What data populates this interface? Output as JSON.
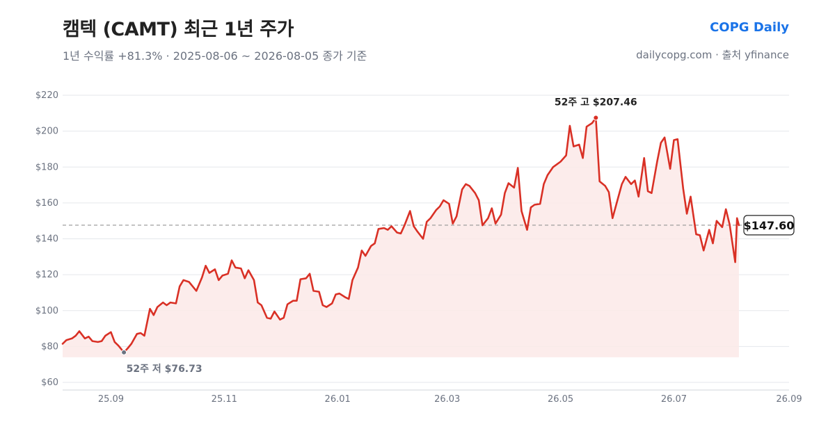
{
  "header": {
    "title": "캠텍 (CAMT) 최근 1년 주가",
    "subtitle": "1년 수익률 +81.3%  ·  2025-08-06 ~ 2026-08-05 종가 기준",
    "brand": "COPG Daily",
    "source": "dailycopg.com · 출처 yfinance"
  },
  "colors": {
    "line": "#d93025",
    "area": "#fbe9e7",
    "grid": "#e5e7eb",
    "reference": "#9e9e9e",
    "low_marker": "#6b7280",
    "brand": "#1a73e8"
  },
  "chart_data": {
    "type": "line",
    "title": "캠텍 (CAMT) 최근 1년 주가",
    "xlabel": "",
    "ylabel": "",
    "ylim": [
      60,
      220
    ],
    "y_ticks": [
      60,
      80,
      100,
      120,
      140,
      160,
      180,
      200,
      220
    ],
    "y_tick_labels": [
      "$60",
      "$80",
      "$100",
      "$120",
      "$140",
      "$160",
      "$180",
      "$200",
      "$220"
    ],
    "x_range": [
      "2025-08-06",
      "2026-09-01"
    ],
    "x_ticks": [
      {
        "date": "2025-09-01",
        "label": "25.09"
      },
      {
        "date": "2025-11-01",
        "label": "25.11"
      },
      {
        "date": "2026-01-01",
        "label": "26.01"
      },
      {
        "date": "2026-03-01",
        "label": "26.03"
      },
      {
        "date": "2026-05-01",
        "label": "26.05"
      },
      {
        "date": "2026-07-01",
        "label": "26.07"
      },
      {
        "date": "2026-09-01",
        "label": "26.09"
      }
    ],
    "grid": true,
    "series": [
      {
        "points": [
          [
            "2025-08-06",
            81.5
          ],
          [
            "2025-08-08",
            83.5
          ],
          [
            "2025-08-11",
            84.5
          ],
          [
            "2025-08-13",
            86
          ],
          [
            "2025-08-15",
            88.5
          ],
          [
            "2025-08-18",
            84.5
          ],
          [
            "2025-08-20",
            85.5
          ],
          [
            "2025-08-22",
            83
          ],
          [
            "2025-08-25",
            82.5
          ],
          [
            "2025-08-27",
            83
          ],
          [
            "2025-08-29",
            86
          ],
          [
            "2025-09-01",
            88
          ],
          [
            "2025-09-03",
            82.5
          ],
          [
            "2025-09-05",
            80.5
          ],
          [
            "2025-09-08",
            76.73
          ],
          [
            "2025-09-10",
            79
          ],
          [
            "2025-09-12",
            81.5
          ],
          [
            "2025-09-15",
            87
          ],
          [
            "2025-09-17",
            87.5
          ],
          [
            "2025-09-19",
            86
          ],
          [
            "2025-09-22",
            101
          ],
          [
            "2025-09-24",
            97.5
          ],
          [
            "2025-09-26",
            102
          ],
          [
            "2025-09-29",
            104.5
          ],
          [
            "2025-10-01",
            103
          ],
          [
            "2025-10-03",
            104.5
          ],
          [
            "2025-10-06",
            104
          ],
          [
            "2025-10-08",
            113.5
          ],
          [
            "2025-10-10",
            117
          ],
          [
            "2025-10-13",
            116
          ],
          [
            "2025-10-15",
            113.5
          ],
          [
            "2025-10-17",
            111
          ],
          [
            "2025-10-20",
            118.5
          ],
          [
            "2025-10-22",
            125
          ],
          [
            "2025-10-24",
            121
          ],
          [
            "2025-10-27",
            123
          ],
          [
            "2025-10-29",
            117
          ],
          [
            "2025-10-31",
            119.5
          ],
          [
            "2025-11-03",
            120.5
          ],
          [
            "2025-11-05",
            128
          ],
          [
            "2025-11-07",
            124
          ],
          [
            "2025-11-10",
            123.5
          ],
          [
            "2025-11-12",
            118
          ],
          [
            "2025-11-14",
            122.5
          ],
          [
            "2025-11-17",
            117
          ],
          [
            "2025-11-19",
            104.5
          ],
          [
            "2025-11-21",
            103
          ],
          [
            "2025-11-24",
            96
          ],
          [
            "2025-11-26",
            95.5
          ],
          [
            "2025-11-28",
            99.5
          ],
          [
            "2025-12-01",
            95
          ],
          [
            "2025-12-03",
            96
          ],
          [
            "2025-12-05",
            103.5
          ],
          [
            "2025-12-08",
            105.5
          ],
          [
            "2025-12-10",
            105.5
          ],
          [
            "2025-12-12",
            117.5
          ],
          [
            "2025-12-15",
            118
          ],
          [
            "2025-12-17",
            120.5
          ],
          [
            "2025-12-19",
            111
          ],
          [
            "2025-12-22",
            110.5
          ],
          [
            "2025-12-24",
            103
          ],
          [
            "2025-12-26",
            102
          ],
          [
            "2025-12-29",
            104
          ],
          [
            "2025-12-31",
            109
          ],
          [
            "2026-01-02",
            109.5
          ],
          [
            "2026-01-05",
            107.5
          ],
          [
            "2026-01-07",
            106.5
          ],
          [
            "2026-01-09",
            117
          ],
          [
            "2026-01-12",
            124
          ],
          [
            "2026-01-14",
            133.5
          ],
          [
            "2026-01-16",
            130.5
          ],
          [
            "2026-01-19",
            136
          ],
          [
            "2026-01-21",
            137.5
          ],
          [
            "2026-01-23",
            145.5
          ],
          [
            "2026-01-26",
            146
          ],
          [
            "2026-01-28",
            145
          ],
          [
            "2026-01-30",
            147
          ],
          [
            "2026-02-02",
            143.5
          ],
          [
            "2026-02-04",
            143
          ],
          [
            "2026-02-06",
            147.5
          ],
          [
            "2026-02-09",
            155.5
          ],
          [
            "2026-02-11",
            147
          ],
          [
            "2026-02-13",
            144
          ],
          [
            "2026-02-16",
            140
          ],
          [
            "2026-02-18",
            149.5
          ],
          [
            "2026-02-20",
            151.5
          ],
          [
            "2026-02-23",
            156
          ],
          [
            "2026-02-25",
            158
          ],
          [
            "2026-02-27",
            161.5
          ],
          [
            "2026-03-02",
            159.5
          ],
          [
            "2026-03-04",
            148.5
          ],
          [
            "2026-03-06",
            152.5
          ],
          [
            "2026-03-09",
            167.5
          ],
          [
            "2026-03-11",
            170.5
          ],
          [
            "2026-03-13",
            169.5
          ],
          [
            "2026-03-16",
            165.5
          ],
          [
            "2026-03-18",
            161.5
          ],
          [
            "2026-03-20",
            147.5
          ],
          [
            "2026-03-23",
            151.5
          ],
          [
            "2026-03-25",
            157
          ],
          [
            "2026-03-27",
            148.5
          ],
          [
            "2026-03-30",
            153.5
          ],
          [
            "2026-04-01",
            165.5
          ],
          [
            "2026-04-03",
            171
          ],
          [
            "2026-04-06",
            168.5
          ],
          [
            "2026-04-08",
            179.5
          ],
          [
            "2026-04-10",
            155.5
          ],
          [
            "2026-04-13",
            145
          ],
          [
            "2026-04-15",
            157.5
          ],
          [
            "2026-04-17",
            159
          ],
          [
            "2026-04-20",
            159.5
          ],
          [
            "2026-04-22",
            170.5
          ],
          [
            "2026-04-24",
            175.5
          ],
          [
            "2026-04-27",
            180
          ],
          [
            "2026-04-29",
            181.5
          ],
          [
            "2026-05-01",
            183
          ],
          [
            "2026-05-04",
            186.5
          ],
          [
            "2026-05-06",
            203
          ],
          [
            "2026-05-08",
            191.5
          ],
          [
            "2026-05-11",
            192.5
          ],
          [
            "2026-05-13",
            185
          ],
          [
            "2026-05-15",
            202.5
          ],
          [
            "2026-05-18",
            204.5
          ],
          [
            "2026-05-20",
            207.46
          ],
          [
            "2026-05-22",
            172
          ],
          [
            "2026-05-25",
            169.5
          ],
          [
            "2026-05-27",
            166
          ],
          [
            "2026-05-29",
            151.5
          ],
          [
            "2026-06-01",
            163
          ],
          [
            "2026-06-03",
            170.5
          ],
          [
            "2026-06-05",
            174.5
          ],
          [
            "2026-06-08",
            170.5
          ],
          [
            "2026-06-10",
            172.5
          ],
          [
            "2026-06-12",
            163.5
          ],
          [
            "2026-06-15",
            185
          ],
          [
            "2026-06-17",
            166.5
          ],
          [
            "2026-06-19",
            165.5
          ],
          [
            "2026-06-22",
            183
          ],
          [
            "2026-06-24",
            193.5
          ],
          [
            "2026-06-26",
            196.5
          ],
          [
            "2026-06-29",
            179
          ],
          [
            "2026-07-01",
            195
          ],
          [
            "2026-07-03",
            195.5
          ],
          [
            "2026-07-06",
            168
          ],
          [
            "2026-07-08",
            154
          ],
          [
            "2026-07-10",
            163.5
          ],
          [
            "2026-07-13",
            142.5
          ],
          [
            "2026-07-15",
            142
          ],
          [
            "2026-07-17",
            133.5
          ],
          [
            "2026-07-20",
            145
          ],
          [
            "2026-07-22",
            137.5
          ],
          [
            "2026-07-24",
            150
          ],
          [
            "2026-07-27",
            146.5
          ],
          [
            "2026-07-29",
            156.5
          ],
          [
            "2026-07-31",
            148
          ],
          [
            "2026-08-03",
            127
          ],
          [
            "2026-08-04",
            151.5
          ],
          [
            "2026-08-05",
            147.6
          ]
        ]
      }
    ],
    "annotations": {
      "high": {
        "label": "52주 고 $207.46",
        "date": "2026-05-20",
        "value": 207.46
      },
      "low": {
        "label": "52주 저 $76.73",
        "date": "2025-09-08",
        "value": 76.73
      },
      "last": {
        "label": "$147.60",
        "value": 147.6
      }
    }
  }
}
